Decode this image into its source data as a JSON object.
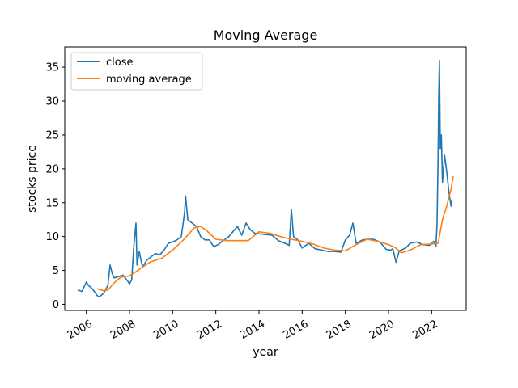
{
  "chart_data": {
    "type": "line",
    "title": "Moving Average",
    "xlabel": "year",
    "ylabel": "stocks price",
    "xlim": [
      2005.0,
      2023.6
    ],
    "ylim": [
      -0.9,
      38.0
    ],
    "xticks": [
      2006,
      2008,
      2010,
      2012,
      2014,
      2016,
      2018,
      2020,
      2022
    ],
    "xtick_labels": [
      "2006",
      "2008",
      "2010",
      "2012",
      "2014",
      "2016",
      "2018",
      "2020",
      "2022"
    ],
    "yticks": [
      0,
      5,
      10,
      15,
      20,
      25,
      30,
      35
    ],
    "ytick_labels": [
      "0",
      "5",
      "10",
      "15",
      "20",
      "25",
      "30",
      "35"
    ],
    "grid": false,
    "legend_position": "top-left",
    "series": [
      {
        "name": "close",
        "color": "#1f77b4",
        "x": [
          2005.6,
          2005.8,
          2006.0,
          2006.1,
          2006.3,
          2006.5,
          2006.6,
          2006.8,
          2007.0,
          2007.1,
          2007.2,
          2007.3,
          2007.5,
          2007.7,
          2007.9,
          2008.0,
          2008.1,
          2008.2,
          2008.3,
          2008.35,
          2008.45,
          2008.6,
          2008.8,
          2009.0,
          2009.2,
          2009.4,
          2009.6,
          2009.8,
          2010.0,
          2010.2,
          2010.4,
          2010.55,
          2010.6,
          2010.7,
          2010.9,
          2011.1,
          2011.3,
          2011.5,
          2011.7,
          2011.9,
          2012.1,
          2012.3,
          2012.6,
          2013.0,
          2013.2,
          2013.4,
          2013.6,
          2013.8,
          2014.0,
          2014.3,
          2014.6,
          2014.9,
          2015.2,
          2015.4,
          2015.5,
          2015.6,
          2015.8,
          2016.0,
          2016.3,
          2016.6,
          2016.9,
          2017.2,
          2017.5,
          2017.8,
          2018.0,
          2018.2,
          2018.35,
          2018.5,
          2018.8,
          2019.0,
          2019.3,
          2019.6,
          2019.9,
          2020.1,
          2020.2,
          2020.35,
          2020.5,
          2020.8,
          2021.0,
          2021.3,
          2021.6,
          2021.9,
          2022.1,
          2022.2,
          2022.25,
          2022.3,
          2022.33,
          2022.36,
          2022.4,
          2022.45,
          2022.5,
          2022.6,
          2022.7,
          2022.8,
          2022.9,
          2022.95
        ],
        "values": [
          2.1,
          1.9,
          3.3,
          2.8,
          2.2,
          1.3,
          1.1,
          1.6,
          2.8,
          5.8,
          4.5,
          3.9,
          4.1,
          4.3,
          3.5,
          3.0,
          3.6,
          8.5,
          12.0,
          5.8,
          7.8,
          5.5,
          6.5,
          7.0,
          7.5,
          7.3,
          8.0,
          9.0,
          9.2,
          9.5,
          10.0,
          13.5,
          16.0,
          12.5,
          12.0,
          11.5,
          10.0,
          9.5,
          9.5,
          8.5,
          8.8,
          9.3,
          10.0,
          11.5,
          10.2,
          12.0,
          11.0,
          10.5,
          10.4,
          10.3,
          10.2,
          9.4,
          9.0,
          8.7,
          14.0,
          10.0,
          9.5,
          8.3,
          9.0,
          8.2,
          8.0,
          7.8,
          7.8,
          7.7,
          9.5,
          10.2,
          12.0,
          9.0,
          9.5,
          9.6,
          9.6,
          9.2,
          8.1,
          8.0,
          8.2,
          6.2,
          7.9,
          8.3,
          9.0,
          9.2,
          8.8,
          8.7,
          9.3,
          8.5,
          12.0,
          22.0,
          31.0,
          36.0,
          23.0,
          25.0,
          18.0,
          22.0,
          19.5,
          16.5,
          14.5,
          15.5
        ]
      },
      {
        "name": "moving average",
        "color": "#ff7f0e",
        "x": [
          2006.5,
          2006.8,
          2007.0,
          2007.3,
          2007.6,
          2008.0,
          2008.3,
          2008.6,
          2009.0,
          2009.5,
          2010.0,
          2010.5,
          2011.0,
          2011.3,
          2011.6,
          2012.0,
          2012.5,
          2013.0,
          2013.5,
          2014.0,
          2014.5,
          2015.0,
          2015.5,
          2016.0,
          2016.5,
          2017.0,
          2017.5,
          2018.0,
          2018.5,
          2019.0,
          2019.5,
          2020.0,
          2020.3,
          2020.6,
          2021.0,
          2021.5,
          2022.0,
          2022.3,
          2022.5,
          2022.7,
          2022.9,
          2023.0
        ],
        "values": [
          2.3,
          2.0,
          2.1,
          3.2,
          4.0,
          4.2,
          4.8,
          5.5,
          6.3,
          6.8,
          8.0,
          9.5,
          11.3,
          11.5,
          10.8,
          9.6,
          9.4,
          9.4,
          9.4,
          10.7,
          10.5,
          10.0,
          9.6,
          9.3,
          8.9,
          8.3,
          8.0,
          7.9,
          8.8,
          9.6,
          9.3,
          8.8,
          8.4,
          7.6,
          8.0,
          8.8,
          8.9,
          9.0,
          12.5,
          14.5,
          17.0,
          18.9
        ]
      }
    ]
  }
}
